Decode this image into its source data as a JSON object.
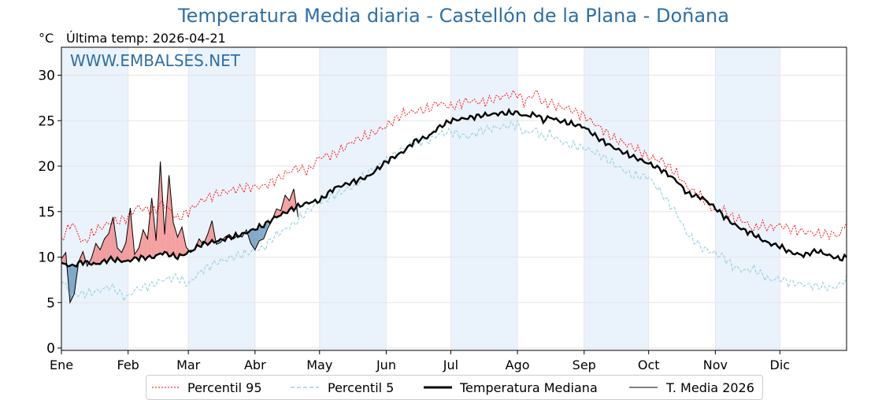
{
  "header": {
    "title": "Temperatura Media diaria - Castellón de la Plana - Doñana",
    "unit": "°C",
    "last_temp": "Última temp: 2026-04-21"
  },
  "watermark": "WWW.EMBALSES.NET",
  "colors": {
    "p95": "#ff0000",
    "p5": "#9fd3e0",
    "median": "#000000",
    "current": "#000000",
    "above_fill": "#f08080",
    "below_fill": "#5b8db8",
    "band": "#eaf2fb",
    "title": "#2f6fa3"
  },
  "legend": [
    {
      "label": "Percentil 95",
      "style": "p95"
    },
    {
      "label": "Percentil 5",
      "style": "p5"
    },
    {
      "label": "Temperatura Mediana",
      "style": "median"
    },
    {
      "label": "T. Media 2026",
      "style": "current"
    }
  ],
  "chart_data": {
    "type": "line",
    "title": "Temperatura Media diaria - Castellón de la Plana - Doñana",
    "ylabel": "°C",
    "ylim": [
      0,
      33
    ],
    "xlim": [
      1,
      366
    ],
    "y_ticks": [
      0,
      5,
      10,
      15,
      20,
      25,
      30
    ],
    "x_ticks": [
      {
        "day": 1,
        "label": "Ene"
      },
      {
        "day": 32,
        "label": "Feb"
      },
      {
        "day": 60,
        "label": "Mar"
      },
      {
        "day": 91,
        "label": "Abr"
      },
      {
        "day": 121,
        "label": "May"
      },
      {
        "day": 152,
        "label": "Jun"
      },
      {
        "day": 182,
        "label": "Jul"
      },
      {
        "day": 213,
        "label": "Ago"
      },
      {
        "day": 244,
        "label": "Sep"
      },
      {
        "day": 274,
        "label": "Oct"
      },
      {
        "day": 305,
        "label": "Nov"
      },
      {
        "day": 335,
        "label": "Dic"
      }
    ],
    "grid": true,
    "legend_position": "bottom",
    "x_unit": "day of year",
    "series": [
      {
        "name": "Percentil 95",
        "x": [
          1,
          6,
          11,
          17,
          24,
          31,
          36,
          44,
          48,
          55,
          60,
          66,
          74,
          85,
          95,
          100,
          110,
          116,
          121,
          128,
          137,
          144,
          152,
          160,
          165,
          172,
          176,
          182,
          190,
          197,
          205,
          213,
          216,
          222,
          225,
          228,
          232,
          236,
          244,
          251,
          258,
          266,
          274,
          280,
          287,
          292,
          299,
          305,
          309,
          313,
          318,
          323,
          326,
          330,
          335,
          340,
          346,
          352,
          360,
          363,
          366
        ],
        "y": [
          12.0,
          13.8,
          11.5,
          13.0,
          13.8,
          14.2,
          15.5,
          15.0,
          16.0,
          14.2,
          15.0,
          16.2,
          17.0,
          17.6,
          17.8,
          18.4,
          19.8,
          19.5,
          21.0,
          21.3,
          22.8,
          23.4,
          24.4,
          25.8,
          26.0,
          26.3,
          27.0,
          26.5,
          27.2,
          27.0,
          27.6,
          28.0,
          27.0,
          28.2,
          26.8,
          27.0,
          26.5,
          26.4,
          25.5,
          24.3,
          23.0,
          22.2,
          21.0,
          20.6,
          19.2,
          17.7,
          16.5,
          15.0,
          15.2,
          14.3,
          14.0,
          13.0,
          13.6,
          13.2,
          13.5,
          13.1,
          12.8,
          12.6,
          12.5,
          12.4,
          14.0
        ]
      },
      {
        "name": "Percentil 5",
        "x": [
          1,
          6,
          11,
          17,
          24,
          31,
          36,
          44,
          48,
          55,
          60,
          66,
          74,
          85,
          95,
          100,
          110,
          116,
          121,
          128,
          137,
          144,
          152,
          160,
          165,
          172,
          176,
          182,
          190,
          197,
          205,
          213,
          216,
          222,
          225,
          228,
          232,
          236,
          244,
          251,
          258,
          266,
          274,
          280,
          287,
          292,
          299,
          305,
          309,
          313,
          318,
          323,
          326,
          330,
          335,
          340,
          346,
          352,
          360,
          363,
          366
        ],
        "y": [
          7.5,
          5.8,
          6.0,
          6.2,
          6.8,
          5.5,
          6.5,
          7.0,
          7.5,
          7.8,
          7.0,
          8.5,
          9.5,
          10.3,
          11.0,
          12.3,
          13.8,
          15.2,
          16.0,
          16.8,
          17.8,
          19.4,
          20.6,
          22.0,
          22.6,
          22.8,
          23.5,
          23.8,
          23.2,
          24.0,
          24.3,
          24.6,
          23.6,
          24.0,
          23.0,
          23.6,
          22.9,
          22.4,
          22.0,
          21.3,
          20.2,
          19.0,
          18.8,
          17.0,
          14.8,
          12.5,
          11.0,
          10.4,
          10.0,
          9.0,
          8.5,
          8.7,
          8.2,
          7.5,
          7.6,
          7.2,
          7.0,
          6.8,
          6.6,
          7.0,
          7.6
        ]
      },
      {
        "name": "Temperatura Mediana",
        "x": [
          1,
          6,
          11,
          17,
          24,
          31,
          36,
          44,
          48,
          55,
          60,
          66,
          74,
          85,
          95,
          100,
          110,
          116,
          121,
          128,
          137,
          144,
          152,
          160,
          165,
          172,
          176,
          182,
          190,
          197,
          205,
          213,
          216,
          222,
          225,
          228,
          232,
          236,
          244,
          251,
          258,
          266,
          274,
          280,
          287,
          292,
          299,
          305,
          309,
          313,
          318,
          323,
          326,
          330,
          335,
          340,
          346,
          352,
          360,
          363,
          366
        ],
        "y": [
          9.3,
          9.0,
          9.5,
          9.2,
          9.8,
          9.5,
          9.9,
          10.0,
          10.5,
          10.0,
          10.5,
          11.4,
          11.8,
          12.5,
          13.5,
          14.3,
          15.5,
          16.0,
          16.2,
          17.6,
          18.3,
          18.9,
          20.5,
          21.6,
          22.7,
          23.3,
          24.2,
          25.0,
          25.3,
          25.6,
          25.8,
          25.9,
          25.5,
          25.7,
          25.0,
          25.4,
          25.0,
          24.8,
          24.3,
          23.0,
          22.0,
          21.1,
          20.3,
          19.6,
          18.4,
          17.0,
          16.5,
          15.4,
          14.5,
          13.7,
          13.0,
          12.5,
          12.0,
          11.5,
          11.2,
          10.5,
          10.2,
          10.7,
          10.0,
          9.8,
          10.0
        ]
      },
      {
        "name": "T. Media 2026",
        "x": [
          1,
          3,
          5,
          7,
          9,
          11,
          13,
          15,
          17,
          19,
          21,
          23,
          25,
          27,
          29,
          31,
          33,
          35,
          37,
          39,
          41,
          43,
          45,
          47,
          49,
          51,
          53,
          55,
          57,
          59,
          61,
          63,
          65,
          67,
          69,
          71,
          73,
          75,
          77,
          79,
          81,
          83,
          85,
          87,
          89,
          91,
          93,
          95,
          97,
          99,
          101,
          103,
          105,
          107,
          109,
          111
        ],
        "y": [
          9.8,
          10.5,
          5.0,
          6.0,
          9.5,
          10.6,
          9.0,
          9.9,
          11.5,
          10.8,
          12.0,
          12.6,
          14.4,
          11.0,
          10.5,
          11.6,
          15.4,
          10.3,
          11.0,
          13.0,
          12.0,
          16.5,
          11.8,
          20.5,
          12.5,
          19.0,
          13.8,
          12.2,
          13.3,
          11.1,
          10.5,
          10.8,
          12.0,
          11.4,
          12.5,
          14.0,
          11.4,
          11.6,
          12.2,
          12.5,
          12.0,
          12.4,
          12.2,
          13.0,
          11.5,
          10.8,
          11.8,
          12.0,
          13.2,
          14.1,
          15.3,
          15.1,
          16.8,
          16.2,
          17.5,
          14.4
        ]
      }
    ]
  }
}
